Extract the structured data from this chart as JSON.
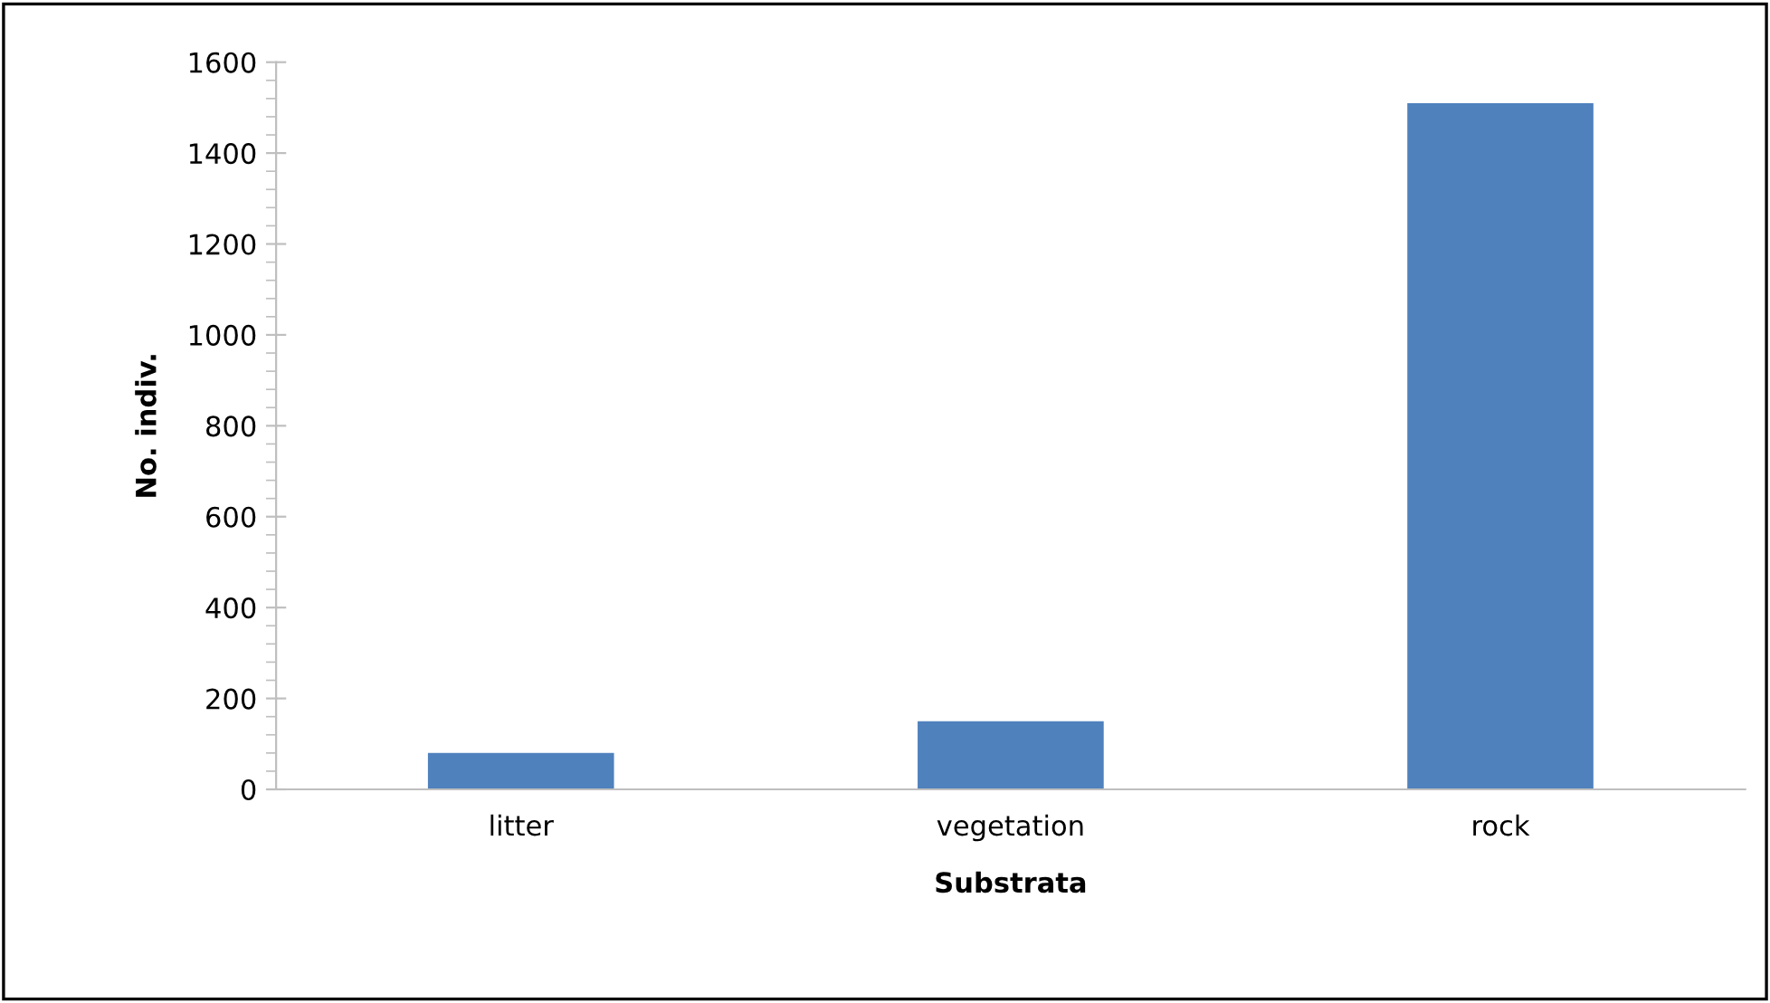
{
  "chart_data": {
    "type": "bar",
    "xlabel": "Substrata",
    "ylabel": "No. indiv.",
    "categories": [
      "litter",
      "vegetation",
      "rock"
    ],
    "values": [
      80,
      150,
      1510
    ],
    "color": "#4f81bd",
    "ylim": [
      0,
      1600
    ],
    "yticks": [
      0,
      200,
      400,
      600,
      800,
      1000,
      1200,
      1400,
      1600
    ],
    "grid": false,
    "legend": false
  }
}
